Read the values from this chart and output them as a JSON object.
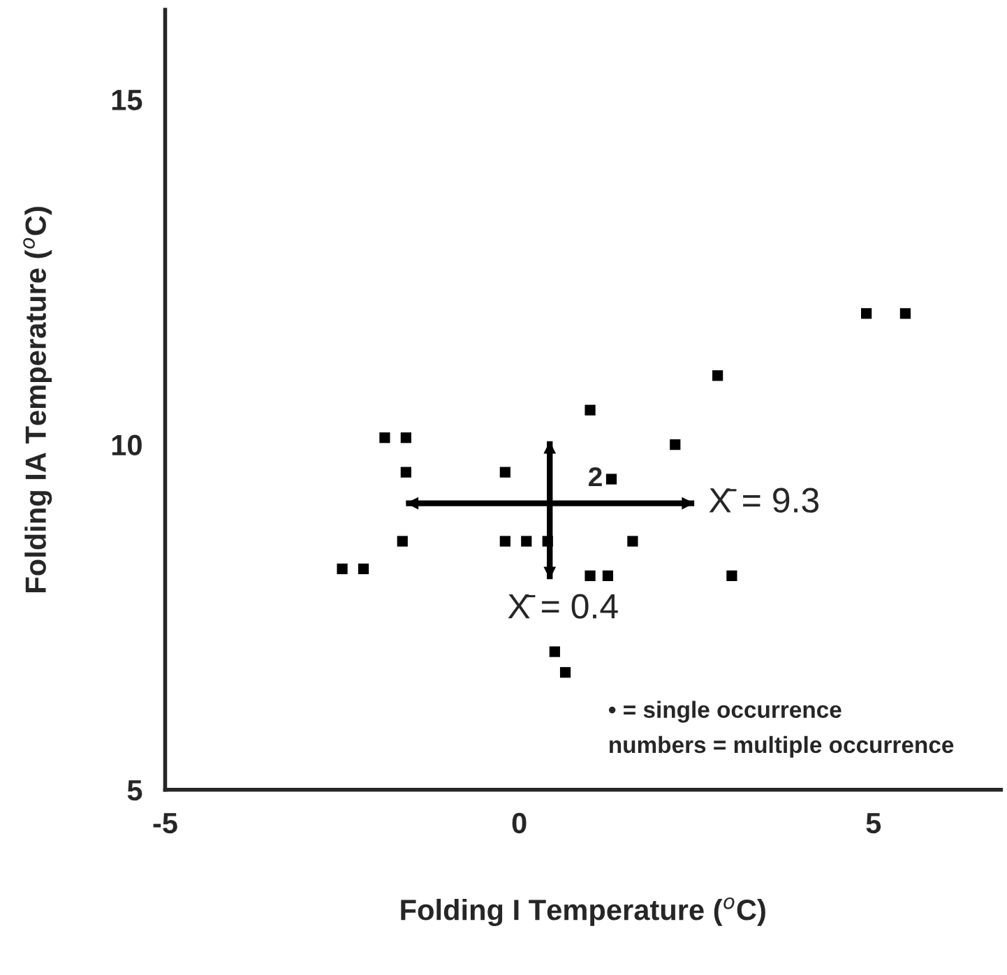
{
  "chart_data": {
    "type": "scatter",
    "xlabel": "Folding I Temperature ($^{o}$C)",
    "ylabel": "Folding IA Temperature ($^{o}$C)",
    "xlim": [
      -5,
      6.8
    ],
    "ylim": [
      5,
      16.3
    ],
    "xticks": [
      -5,
      0,
      5
    ],
    "yticks": [
      5,
      10,
      15
    ],
    "grid": false,
    "marker": "square",
    "legend": false,
    "series": [
      {
        "color": "#000000",
        "x": [
          -1.9,
          -1.6,
          -1.6,
          -0.2,
          1.0,
          2.2,
          1.3,
          -1.65,
          -0.2,
          0.1,
          0.4,
          1.6,
          -2.5,
          -2.2,
          1.0,
          1.25,
          0.5,
          0.65,
          4.9,
          5.45,
          2.8,
          3.0
        ],
        "values": [
          10.1,
          10.1,
          9.6,
          9.6,
          10.5,
          10.0,
          9.5,
          8.6,
          8.6,
          8.6,
          8.6,
          8.6,
          8.2,
          8.2,
          8.1,
          8.1,
          7.0,
          6.7,
          11.9,
          11.9,
          11.0,
          8.1
        ]
      },
      {
        "type": "line",
        "marker": "none",
        "color": "#000000",
        "x": [
          -1.6,
          2.47
        ],
        "values": [
          9.15,
          9.15
        ]
      },
      {
        "type": "line",
        "marker": "none",
        "color": "#000000",
        "x": [
          0.43,
          0.43
        ],
        "values": [
          10.05,
          8.05
        ]
      }
    ],
    "annotations": [
      {
        "text": "2",
        "x": 1.3,
        "y": 9.5
      },
      {
        "text": "X̄ = 9.3",
        "x": 2.47,
        "y": 9.15
      },
      {
        "text": "X̄ = 0.4",
        "x": 0.43,
        "y": 8.0
      },
      "• = single occurrence",
      "numbers = multiple occurrence"
    ]
  }
}
